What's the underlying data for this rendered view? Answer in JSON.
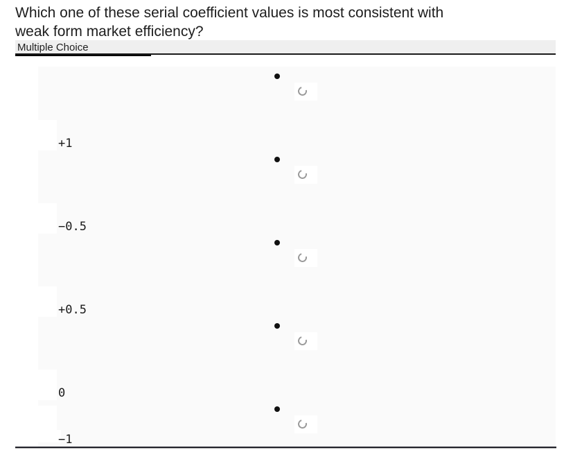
{
  "question": {
    "title": "Which one of these serial coefficient values is most consistent with\nweak form market efficiency?",
    "type_label": "Multiple Choice"
  },
  "options": [
    {
      "label": "+1"
    },
    {
      "label": "−0.5"
    },
    {
      "label": "+0.5"
    },
    {
      "label": "0"
    },
    {
      "label": "−1"
    }
  ],
  "colors": {
    "panel_bg": "#fafafa",
    "header_bg": "#efefef",
    "rule_dark": "#1a1a1a",
    "bullet": "#111111",
    "radio_ring": "#9a9a9a"
  }
}
